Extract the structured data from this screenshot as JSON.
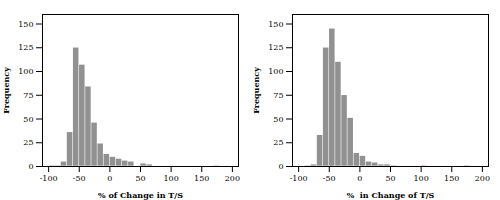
{
  "chart_data": [
    {
      "type": "histogram",
      "xlabel": "% of Change in T/S",
      "ylabel": "Frequency",
      "xlim": [
        -110,
        210
      ],
      "ylim": [
        0,
        160
      ],
      "xticks": [
        -100,
        -50,
        0,
        50,
        100,
        150,
        200
      ],
      "yticks": [
        0,
        25,
        50,
        75,
        100,
        125,
        150
      ],
      "bins": [
        -100,
        -90,
        -80,
        -70,
        -60,
        -50,
        -40,
        -30,
        -20,
        -10,
        0,
        10,
        20,
        30,
        40,
        50,
        60,
        70,
        80,
        90,
        100,
        110,
        120,
        130,
        140,
        150,
        160,
        170,
        180,
        190,
        200
      ],
      "values": [
        1,
        1,
        5,
        36,
        125,
        107,
        84,
        46,
        24,
        13,
        10,
        8,
        6,
        5,
        0,
        3,
        2,
        0,
        0,
        0,
        0,
        0,
        0,
        0,
        0,
        0,
        0,
        1,
        0,
        0
      ],
      "color": "#919191"
    },
    {
      "type": "histogram",
      "xlabel": "%  in Change of T/S",
      "ylabel": "Frequency",
      "xlim": [
        -110,
        210
      ],
      "ylim": [
        0,
        160
      ],
      "xticks": [
        -100,
        -50,
        0,
        50,
        100,
        150,
        200
      ],
      "yticks": [
        0,
        25,
        50,
        75,
        100,
        125,
        150
      ],
      "bins": [
        -100,
        -90,
        -80,
        -70,
        -60,
        -50,
        -40,
        -30,
        -20,
        -10,
        0,
        10,
        20,
        30,
        40,
        50,
        60,
        70,
        80,
        90,
        100,
        110,
        120,
        130,
        140,
        150,
        160,
        170,
        180,
        190,
        200
      ],
      "values": [
        0,
        1,
        2,
        33,
        125,
        145,
        110,
        75,
        51,
        14,
        11,
        5,
        4,
        2,
        2,
        1,
        0,
        0,
        0,
        0,
        1,
        0,
        0,
        0,
        0,
        0,
        0,
        1,
        0,
        0
      ],
      "color": "#919191"
    }
  ]
}
